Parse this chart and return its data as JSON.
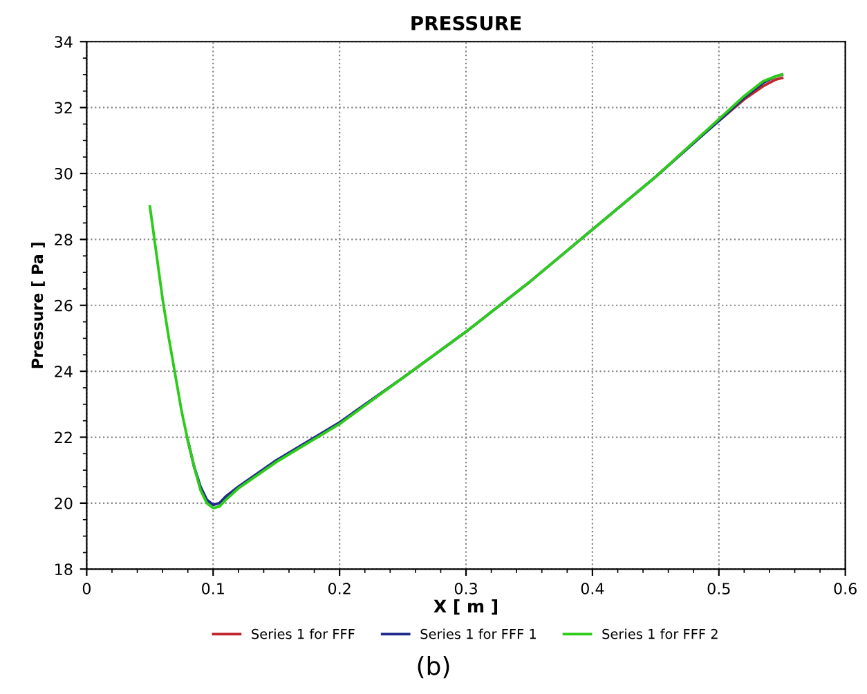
{
  "chart_data": {
    "type": "line",
    "title": "PRESSURE",
    "xlabel": "X [ m ]",
    "ylabel": "Pressure [ Pa ]",
    "x": [
      0.05,
      0.055,
      0.06,
      0.065,
      0.07,
      0.075,
      0.08,
      0.085,
      0.09,
      0.095,
      0.1,
      0.105,
      0.11,
      0.12,
      0.15,
      0.2,
      0.25,
      0.3,
      0.35,
      0.4,
      0.45,
      0.5,
      0.52,
      0.535,
      0.545,
      0.55
    ],
    "series": [
      {
        "name": "Series 1 for FFF",
        "color": "#c0272d",
        "values": [
          null,
          null,
          null,
          null,
          null,
          null,
          null,
          null,
          null,
          null,
          null,
          null,
          null,
          null,
          null,
          null,
          null,
          null,
          null,
          null,
          null,
          31.6,
          32.25,
          32.65,
          32.85,
          32.9
        ]
      },
      {
        "name": "Series 1 for FFF 1",
        "color": "#1f2a8c",
        "values": [
          null,
          null,
          null,
          null,
          null,
          null,
          21.9,
          21.1,
          20.5,
          20.1,
          19.95,
          20.0,
          20.2,
          20.5,
          21.3,
          22.45,
          23.8,
          25.2,
          26.7,
          28.3,
          29.9,
          31.6,
          32.3,
          32.75,
          32.95,
          33.0
        ]
      },
      {
        "name": "Series 1 for FFF 2",
        "color": "#2ecc1a",
        "values": [
          29.0,
          27.6,
          26.2,
          25.0,
          23.9,
          22.8,
          21.9,
          21.1,
          20.4,
          20.0,
          19.85,
          19.9,
          20.1,
          20.45,
          21.25,
          22.4,
          23.8,
          25.2,
          26.7,
          28.3,
          29.9,
          31.65,
          32.35,
          32.8,
          32.95,
          33.0
        ]
      }
    ],
    "xlim": [
      0,
      0.6
    ],
    "xticks": [
      0,
      0.1,
      0.2,
      0.3,
      0.4,
      0.5,
      0.6
    ],
    "ylim": [
      18,
      34
    ],
    "yticks": [
      18,
      20,
      22,
      24,
      26,
      28,
      30,
      32,
      34
    ],
    "grid": true,
    "legend": "bottom",
    "line_style": "solid",
    "marker": "none",
    "annotations": [
      "(b)"
    ]
  }
}
